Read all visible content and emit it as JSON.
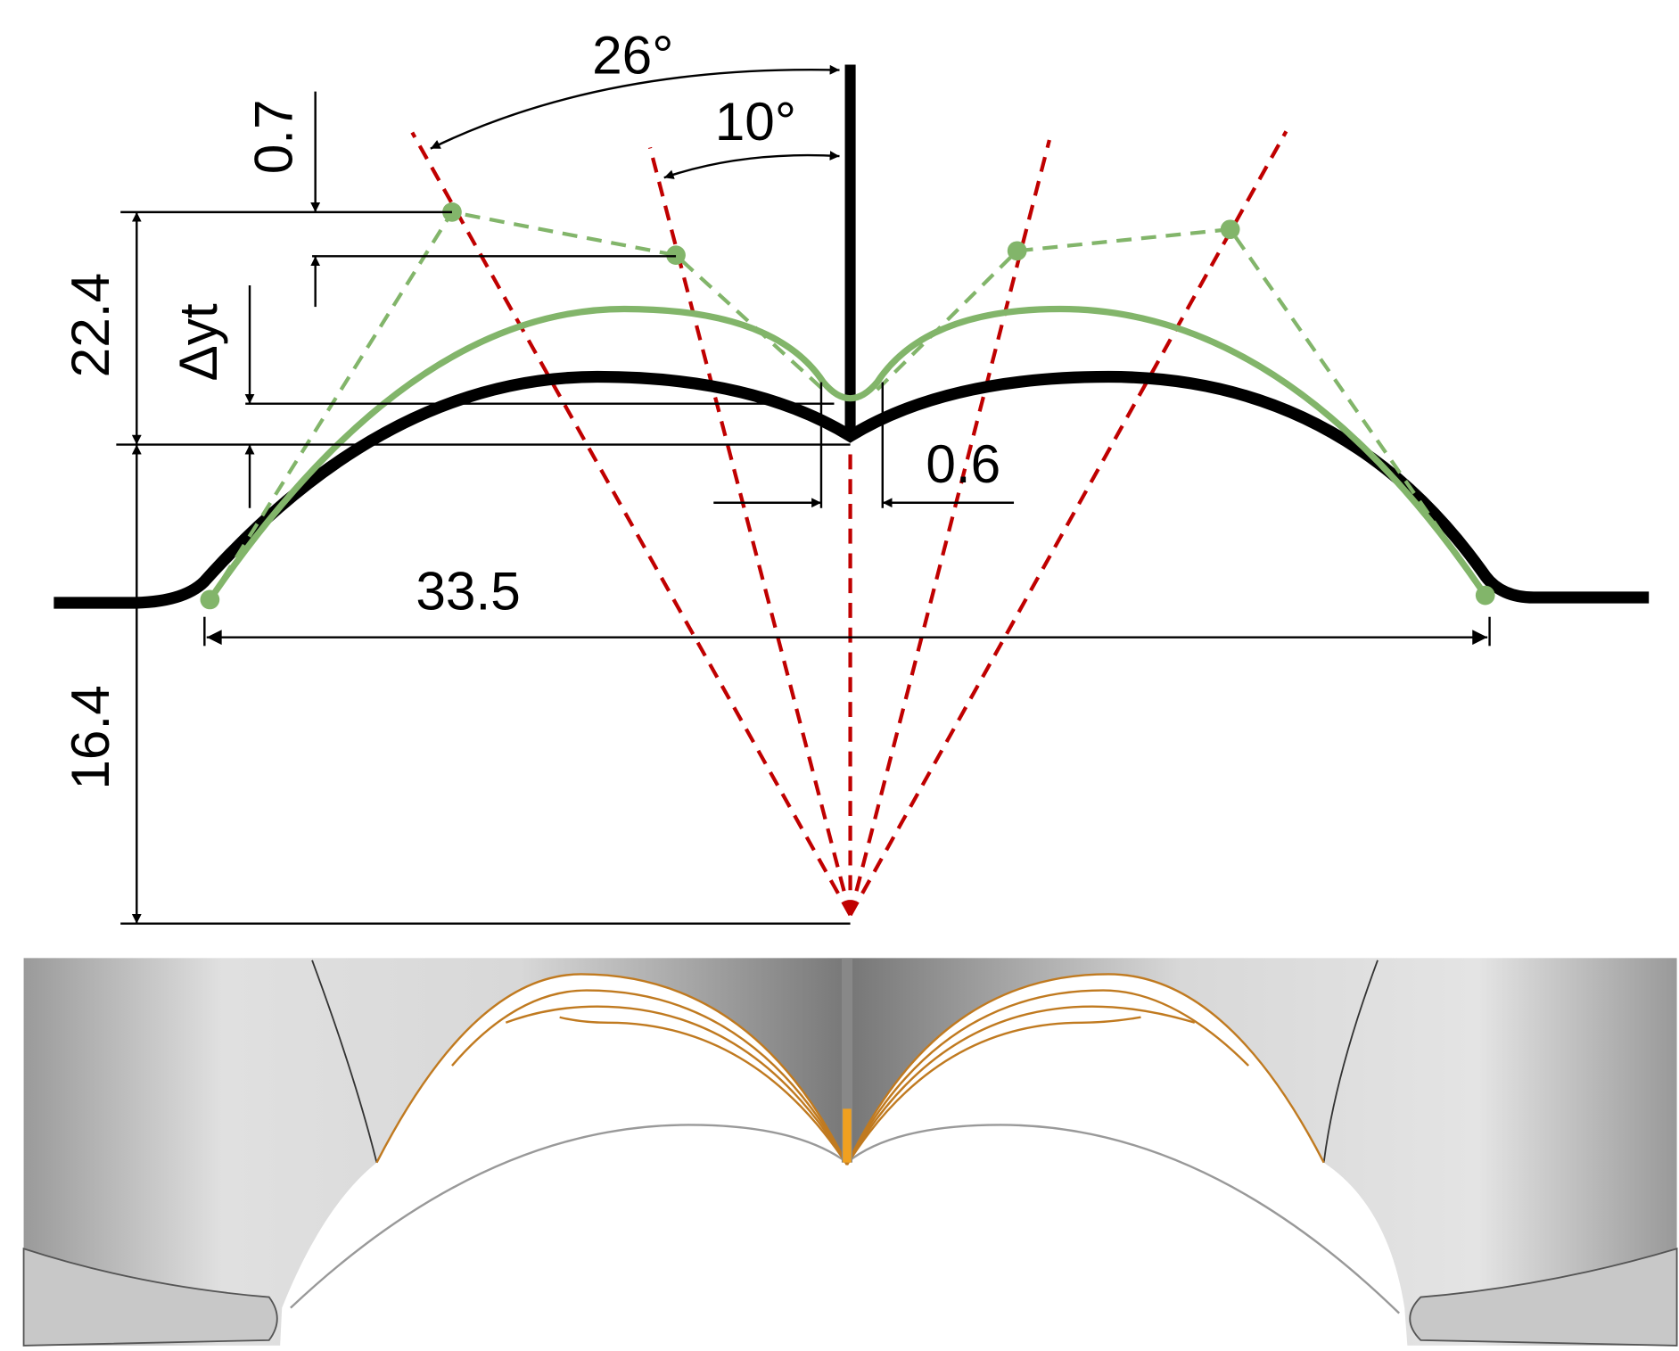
{
  "labels": {
    "angle_outer": "26°",
    "angle_inner": "10°",
    "offset_top": "0.7",
    "height_upper": "22.4",
    "delta_yt": "Δyt",
    "gap": "0.6",
    "width": "33.5",
    "height_lower": "16.4"
  }
}
